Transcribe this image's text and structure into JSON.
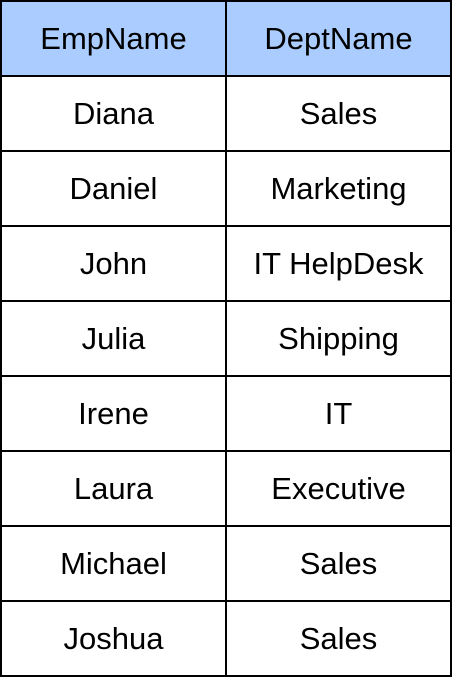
{
  "table": {
    "columns": [
      "EmpName",
      "DeptName"
    ],
    "rows": [
      [
        "Diana",
        "Sales"
      ],
      [
        "Daniel",
        "Marketing"
      ],
      [
        "John",
        "IT HelpDesk"
      ],
      [
        "Julia",
        "Shipping"
      ],
      [
        "Irene",
        "IT"
      ],
      [
        "Laura",
        "Executive"
      ],
      [
        "Michael",
        "Sales"
      ],
      [
        "Joshua",
        "Sales"
      ]
    ]
  },
  "colors": {
    "header_background": "#aaccff",
    "grid_line": "#000000"
  }
}
